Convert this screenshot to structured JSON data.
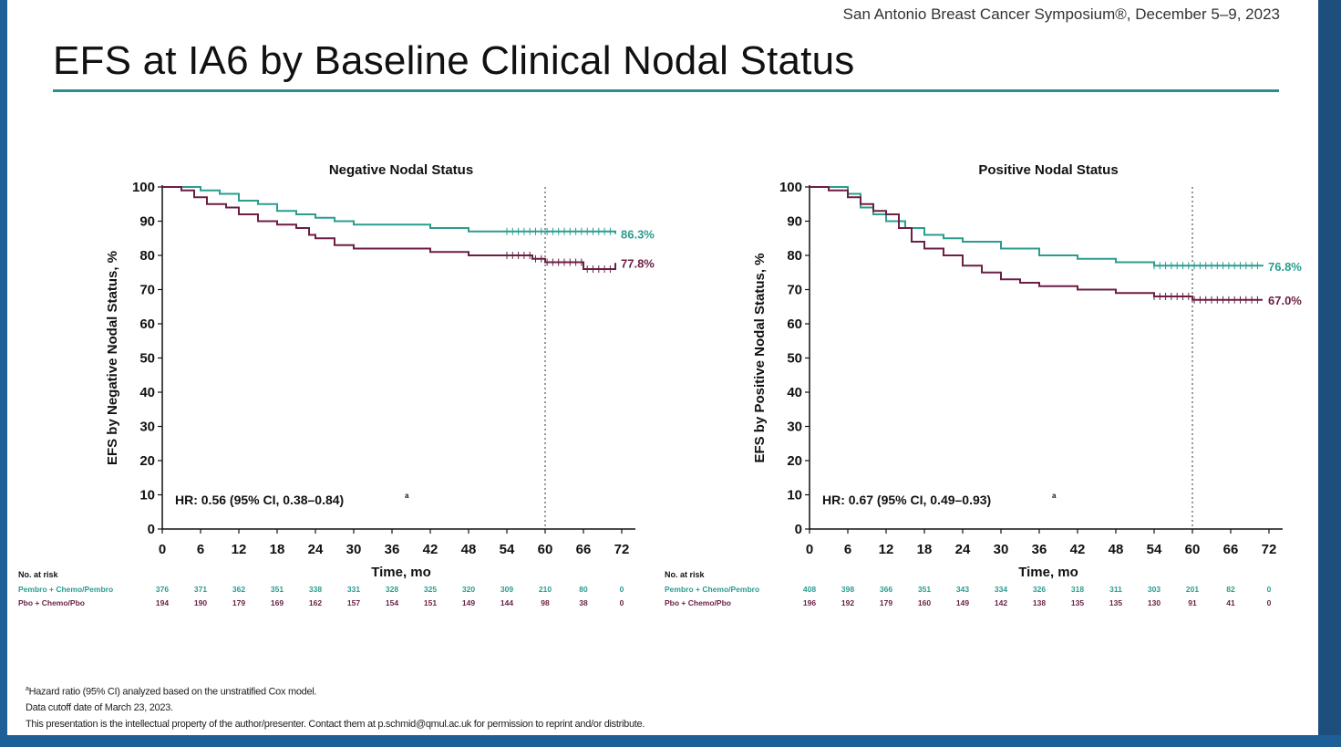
{
  "header": {
    "symposium": "San Antonio Breast Cancer Symposium®, December 5–9, 2023",
    "title": "EFS at IA6 by Baseline Clinical Nodal Status"
  },
  "colors": {
    "pembro": "#2a9d8f",
    "placebo": "#6b1f45",
    "axis": "#111111"
  },
  "footnotes": {
    "line1": "Hazard ratio (95% CI) analyzed based on the unstratified Cox model.",
    "line1_mark": "a",
    "line2": "Data cutoff date of March 23, 2023.",
    "line3": "This presentation is the intellectual property of the author/presenter. Contact them at p.schmid@qmul.ac.uk for permission to reprint and/or distribute."
  },
  "chart_data": [
    {
      "type": "line",
      "title": "Negative Nodal Status",
      "xlabel": "Time, mo",
      "ylabel": "EFS by Negative Nodal Status, %",
      "xlim": [
        0,
        72
      ],
      "ylim": [
        0,
        100
      ],
      "x_ticks": [
        0,
        6,
        12,
        18,
        24,
        30,
        36,
        42,
        48,
        54,
        60,
        66,
        72
      ],
      "y_ticks": [
        0,
        10,
        20,
        30,
        40,
        50,
        60,
        70,
        80,
        90,
        100
      ],
      "reference_line_x": 60,
      "hr_text": "HR: 0.56 (95% CI, 0.38–0.84)",
      "hr_mark": "a",
      "risk_table": {
        "heading": "No. at risk",
        "rows": [
          {
            "label": "Pembro + Chemo/Pembro",
            "values": [
              376,
              371,
              362,
              351,
              338,
              331,
              328,
              325,
              320,
              309,
              210,
              80,
              0
            ]
          },
          {
            "label": "Pbo + Chemo/Pbo",
            "values": [
              194,
              190,
              179,
              169,
              162,
              157,
              154,
              151,
              149,
              144,
              98,
              38,
              0
            ]
          }
        ]
      },
      "series": [
        {
          "name": "Pembro + Chemo/Pembro",
          "end_label": "86.3%",
          "x": [
            0,
            3,
            6,
            9,
            12,
            15,
            18,
            21,
            24,
            27,
            30,
            36,
            42,
            48,
            54,
            60,
            66,
            71
          ],
          "y": [
            100,
            100,
            99,
            98,
            96,
            95,
            93,
            92,
            91,
            90,
            89,
            89,
            88,
            87,
            87,
            87,
            87,
            86.3
          ]
        },
        {
          "name": "Pbo + Chemo/Pbo",
          "end_label": "77.8%",
          "x": [
            0,
            3,
            5,
            7,
            10,
            12,
            15,
            18,
            21,
            23,
            24,
            27,
            30,
            36,
            42,
            48,
            54,
            58,
            60,
            63,
            66,
            71
          ],
          "y": [
            100,
            99,
            97,
            95,
            94,
            92,
            90,
            89,
            88,
            86,
            85,
            83,
            82,
            82,
            81,
            80,
            80,
            79,
            78,
            78,
            76,
            77.8
          ]
        }
      ]
    },
    {
      "type": "line",
      "title": "Positive Nodal Status",
      "xlabel": "Time, mo",
      "ylabel": "EFS by Positive Nodal Status, %",
      "xlim": [
        0,
        72
      ],
      "ylim": [
        0,
        100
      ],
      "x_ticks": [
        0,
        6,
        12,
        18,
        24,
        30,
        36,
        42,
        48,
        54,
        60,
        66,
        72
      ],
      "y_ticks": [
        0,
        10,
        20,
        30,
        40,
        50,
        60,
        70,
        80,
        90,
        100
      ],
      "reference_line_x": 60,
      "hr_text": "HR: 0.67 (95% CI, 0.49–0.93)",
      "hr_mark": "a",
      "risk_table": {
        "heading": "No. at risk",
        "rows": [
          {
            "label": "Pembro + Chemo/Pembro",
            "values": [
              408,
              398,
              366,
              351,
              343,
              334,
              326,
              318,
              311,
              303,
              201,
              82,
              0
            ]
          },
          {
            "label": "Pbo + Chemo/Pbo",
            "values": [
              196,
              192,
              179,
              160,
              149,
              142,
              138,
              135,
              135,
              130,
              91,
              41,
              0
            ]
          }
        ]
      },
      "series": [
        {
          "name": "Pembro + Chemo/Pembro",
          "end_label": "76.8%",
          "x": [
            0,
            3,
            6,
            8,
            10,
            12,
            15,
            18,
            21,
            24,
            30,
            36,
            42,
            48,
            54,
            60,
            66,
            71
          ],
          "y": [
            100,
            100,
            98,
            94,
            92,
            90,
            88,
            86,
            85,
            84,
            82,
            80,
            79,
            78,
            77,
            77,
            77,
            76.8
          ]
        },
        {
          "name": "Pbo + Chemo/Pbo",
          "end_label": "67.0%",
          "x": [
            0,
            3,
            6,
            8,
            10,
            12,
            14,
            16,
            18,
            21,
            24,
            27,
            30,
            33,
            36,
            42,
            48,
            54,
            60,
            66,
            71
          ],
          "y": [
            100,
            99,
            97,
            95,
            93,
            92,
            88,
            84,
            82,
            80,
            77,
            75,
            73,
            72,
            71,
            70,
            69,
            68,
            67,
            67,
            67.0
          ]
        }
      ]
    }
  ]
}
